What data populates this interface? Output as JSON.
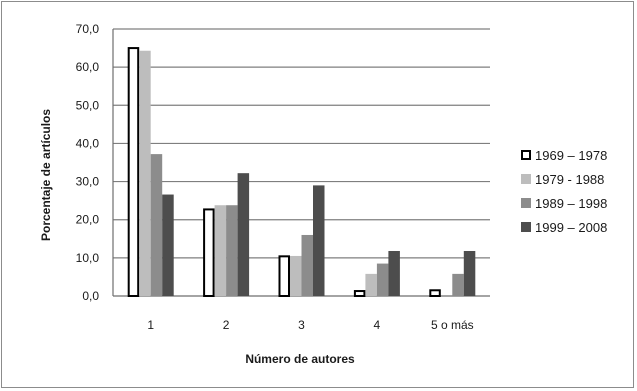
{
  "chart_data": {
    "type": "bar",
    "title": "",
    "xlabel": "Número de autores",
    "ylabel": "Porcentaje de artículos",
    "ylim": [
      0,
      70
    ],
    "yticks": [
      "0,0",
      "10,0",
      "20,0",
      "30,0",
      "40,0",
      "50,0",
      "60,0",
      "70,0"
    ],
    "grid": true,
    "legend_position": "right",
    "categories": [
      "1",
      "2",
      "3",
      "4",
      "5 o más"
    ],
    "series": [
      {
        "name": "1969 – 1978",
        "color": "#ffffff",
        "stroke": "#000000",
        "values": [
          65.0,
          22.7,
          10.4,
          1.3,
          1.5
        ]
      },
      {
        "name": "1979 - 1988",
        "color": "#bdbdbd",
        "values": [
          64.3,
          23.8,
          10.5,
          5.8,
          0
        ]
      },
      {
        "name": "1989 – 1998",
        "color": "#8c8c8c",
        "values": [
          37.2,
          23.8,
          16.0,
          8.5,
          5.8
        ]
      },
      {
        "name": "1999 – 2008",
        "color": "#4d4d4d",
        "values": [
          26.6,
          32.2,
          29.0,
          11.8,
          11.8
        ]
      }
    ]
  }
}
